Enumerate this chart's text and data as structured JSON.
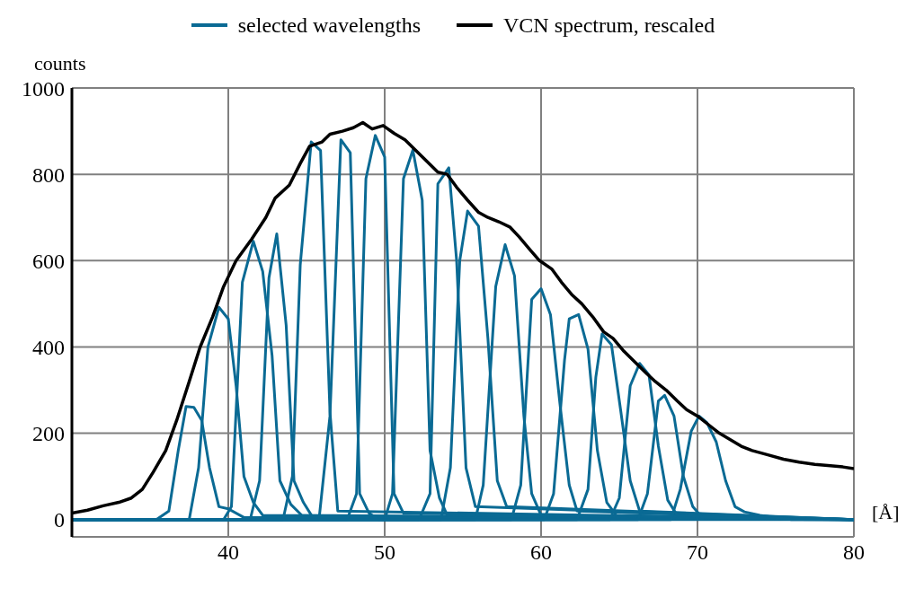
{
  "chart_data": {
    "type": "line",
    "xlabel": "[Å]",
    "ylabel": "counts",
    "xlim": [
      30,
      80
    ],
    "ylim": [
      -40,
      1000
    ],
    "xticks": [
      40,
      50,
      60,
      70,
      80
    ],
    "yticks": [
      0,
      200,
      400,
      600,
      800,
      1000
    ],
    "grid": true,
    "legend": "top",
    "marker": "none",
    "line_style": "solid",
    "series": [
      {
        "name": "selected wavelengths",
        "color": "#0a6a94",
        "x": [
          30,
          35.4,
          36.2,
          36.8,
          37.3,
          37.8,
          38.3,
          38.8,
          39.4,
          40,
          41,
          80
        ],
        "values": [
          0,
          0,
          20,
          160,
          262,
          260,
          230,
          120,
          30,
          25,
          5,
          0
        ]
      },
      {
        "color": "#0a6a94",
        "x": [
          30,
          37.5,
          38.1,
          38.7,
          39.4,
          40,
          40.5,
          41,
          41.6,
          42.2,
          80
        ],
        "values": [
          0,
          0,
          120,
          400,
          492,
          465,
          310,
          100,
          40,
          10,
          0
        ]
      },
      {
        "color": "#0a6a94",
        "x": [
          30,
          39.7,
          40.2,
          40.9,
          41.6,
          42.2,
          42.8,
          43.3,
          44,
          44.7,
          80
        ],
        "values": [
          0,
          0,
          30,
          550,
          645,
          575,
          380,
          90,
          35,
          10,
          0
        ]
      },
      {
        "color": "#0a6a94",
        "x": [
          30,
          41.4,
          42,
          42.6,
          43.1,
          43.7,
          44.2,
          44.8,
          45.4,
          80
        ],
        "values": [
          0,
          0,
          90,
          560,
          662,
          450,
          90,
          40,
          5,
          0
        ]
      },
      {
        "color": "#0a6a94",
        "x": [
          30,
          43.5,
          44.1,
          44.6,
          45.3,
          45.9,
          46.5,
          47,
          80
        ],
        "values": [
          0,
          0,
          100,
          590,
          875,
          855,
          250,
          20,
          0
        ]
      },
      {
        "color": "#0a6a94",
        "x": [
          30,
          45.8,
          46.5,
          47.2,
          47.8,
          48.4,
          49,
          49.6,
          80
        ],
        "values": [
          0,
          0,
          240,
          880,
          850,
          60,
          15,
          0,
          0
        ]
      },
      {
        "color": "#0a6a94",
        "x": [
          30,
          47.6,
          48.2,
          48.8,
          49.4,
          50,
          50.6,
          51.2,
          80
        ],
        "values": [
          0,
          0,
          60,
          790,
          890,
          840,
          60,
          15,
          0
        ]
      },
      {
        "color": "#0a6a94",
        "x": [
          30,
          50,
          50.5,
          51.2,
          51.8,
          52.4,
          52.9,
          53.5,
          54,
          80
        ],
        "values": [
          0,
          0,
          60,
          790,
          856,
          740,
          160,
          50,
          10,
          0
        ]
      },
      {
        "color": "#0a6a94",
        "x": [
          30,
          52.2,
          52.9,
          53.4,
          54.1,
          54.6,
          55.2,
          55.8,
          80
        ],
        "values": [
          0,
          0,
          60,
          778,
          815,
          600,
          120,
          30,
          0
        ]
      },
      {
        "color": "#0a6a94",
        "x": [
          30,
          53.6,
          54.2,
          54.8,
          55.3,
          56,
          56.6,
          57.2,
          57.8,
          80
        ],
        "values": [
          0,
          0,
          120,
          600,
          715,
          680,
          420,
          90,
          30,
          0
        ]
      },
      {
        "color": "#0a6a94",
        "x": [
          30,
          55.8,
          56.3,
          57.1,
          57.7,
          58.3,
          58.9,
          59.4,
          60,
          80
        ],
        "values": [
          0,
          0,
          80,
          540,
          637,
          565,
          240,
          60,
          10,
          0
        ]
      },
      {
        "color": "#0a6a94",
        "x": [
          30,
          58.1,
          58.7,
          59.4,
          60,
          60.6,
          61.2,
          61.8,
          62.3,
          80
        ],
        "values": [
          0,
          0,
          80,
          510,
          535,
          475,
          270,
          80,
          20,
          0
        ]
      },
      {
        "color": "#0a6a94",
        "x": [
          30,
          60.2,
          60.8,
          61.5,
          61.8,
          62.4,
          63,
          63.6,
          64.2,
          64.8,
          80
        ],
        "values": [
          0,
          0,
          60,
          370,
          465,
          475,
          395,
          160,
          40,
          10,
          0
        ]
      },
      {
        "color": "#0a6a94",
        "x": [
          30,
          62.3,
          63,
          63.5,
          63.9,
          64.5,
          65.1,
          65.7,
          66.3,
          80
        ],
        "values": [
          0,
          0,
          70,
          330,
          430,
          405,
          250,
          90,
          20,
          0
        ]
      },
      {
        "color": "#0a6a94",
        "x": [
          30,
          64.4,
          65,
          65.7,
          66.3,
          66.9,
          67.5,
          68.1,
          68.7,
          80
        ],
        "values": [
          0,
          0,
          50,
          310,
          362,
          335,
          170,
          45,
          10,
          0
        ]
      },
      {
        "color": "#0a6a94",
        "x": [
          30,
          66.2,
          66.8,
          67.5,
          67.9,
          68.5,
          69.1,
          69.7,
          70.3,
          80
        ],
        "values": [
          0,
          0,
          60,
          275,
          288,
          240,
          100,
          30,
          5,
          0
        ]
      },
      {
        "color": "#0a6a94",
        "x": [
          30,
          68.3,
          68.9,
          69.6,
          70.1,
          70.6,
          71.2,
          71.8,
          72.4,
          73,
          74,
          75,
          76,
          80
        ],
        "values": [
          0,
          0,
          70,
          205,
          240,
          225,
          180,
          90,
          30,
          18,
          10,
          5,
          0,
          0
        ]
      },
      {
        "name": "VCN spectrum, rescaled",
        "color": "#000000",
        "x": [
          30,
          31,
          32,
          33,
          33.8,
          34.5,
          35.2,
          36,
          36.7,
          37.5,
          38.2,
          39,
          39.7,
          40.5,
          41.5,
          42.4,
          43,
          43.9,
          44.6,
          45.2,
          46,
          46.5,
          47.3,
          48,
          48.6,
          49.2,
          49.9,
          50.6,
          51.3,
          52,
          52.7,
          53.4,
          54,
          54.6,
          55.3,
          56,
          56.6,
          57.3,
          58,
          58.6,
          59.3,
          59.9,
          60.7,
          61.3,
          62,
          62.6,
          63.3,
          64,
          64.6,
          65.3,
          66,
          66.7,
          67.3,
          68,
          68.7,
          69.3,
          70,
          70.7,
          71.4,
          72.1,
          72.8,
          73.5,
          74.5,
          75.5,
          76.5,
          77.5,
          78.5,
          79.3,
          80
        ],
        "values": [
          15,
          22,
          32,
          40,
          50,
          70,
          110,
          160,
          230,
          320,
          400,
          470,
          540,
          600,
          650,
          700,
          745,
          775,
          825,
          865,
          875,
          893,
          900,
          908,
          920,
          905,
          913,
          895,
          880,
          855,
          830,
          805,
          800,
          770,
          740,
          712,
          700,
          690,
          678,
          655,
          625,
          600,
          580,
          550,
          520,
          500,
          470,
          435,
          420,
          390,
          365,
          340,
          320,
          300,
          275,
          255,
          240,
          220,
          200,
          185,
          170,
          160,
          150,
          140,
          133,
          128,
          125,
          122,
          118
        ]
      }
    ]
  }
}
